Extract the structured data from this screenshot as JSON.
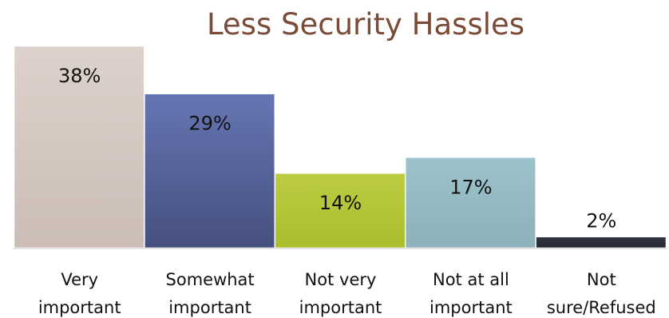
{
  "chart_data": {
    "type": "bar",
    "title": "Less Security Hassles",
    "xlabel": "",
    "ylabel": "",
    "ylim": [
      0,
      38
    ],
    "grid": false,
    "legend": "none",
    "categories": [
      [
        "Very",
        "important"
      ],
      [
        "Somewhat",
        "important"
      ],
      [
        "Not very",
        "important"
      ],
      [
        "Not at all",
        "important"
      ],
      [
        "Not",
        "sure/Refused"
      ]
    ],
    "values": [
      38,
      29,
      14,
      17,
      2
    ],
    "data_labels": [
      "38%",
      "29%",
      "14%",
      "17%",
      "2%"
    ],
    "colors": [
      "#d5c7c1",
      "#5f6ba9",
      "#b6c73a",
      "#93b9c4",
      "#2b3039"
    ]
  }
}
